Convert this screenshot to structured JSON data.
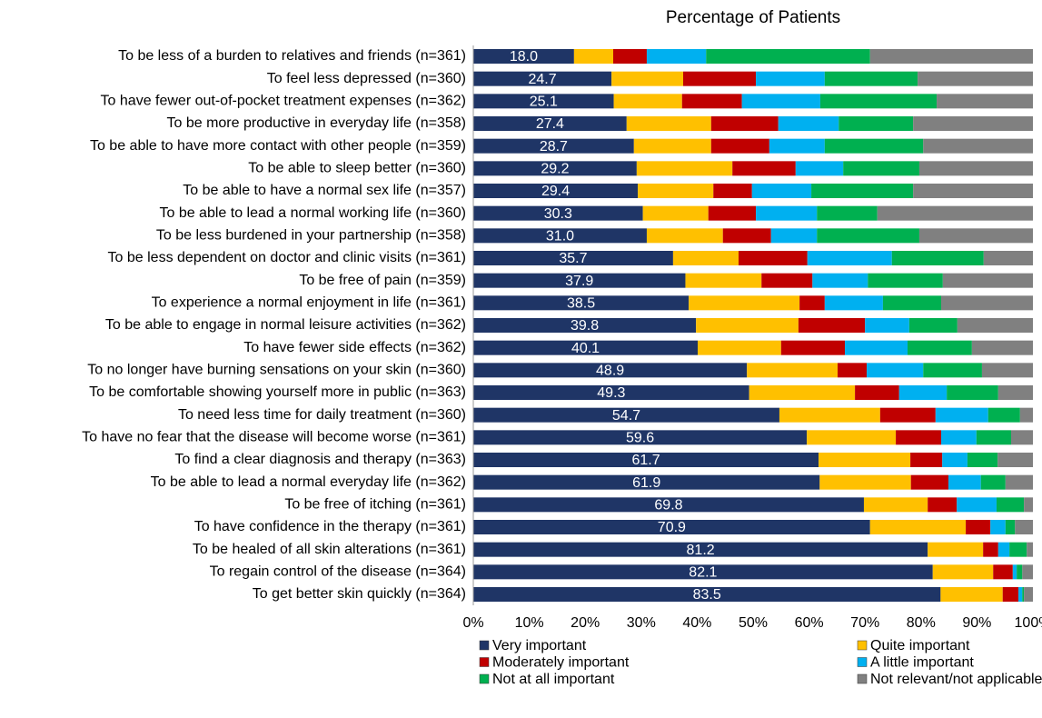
{
  "chart_data": {
    "type": "stacked-barh",
    "title": "Percentage of Patients",
    "categories": [
      "To be less of a burden to relatives and friends (n=361)",
      "To feel less depressed (n=360)",
      "To have fewer out-of-pocket treatment expenses (n=362)",
      "To be more productive in everyday life (n=358)",
      "To be able to have more contact with other people (n=359)",
      "To be able to sleep better (n=360)",
      "To be able to have a normal sex life (n=357)",
      "To be able to lead a normal working life (n=360)",
      "To be less burdened in your partnership (n=358)",
      "To be less dependent on doctor and clinic visits (n=361)",
      "To be free of pain (n=359)",
      "To experience a normal enjoyment in life (n=361)",
      "To be able to engage in normal leisure activities (n=362)",
      "To have fewer side effects (n=362)",
      "To no longer have burning sensations on your skin (n=360)",
      "To be comfortable showing yourself more in public (n=363)",
      "To need less time for daily treatment (n=360)",
      "To have no fear that the disease will become worse (n=361)",
      "To find a clear diagnosis and therapy (n=363)",
      "To be able to lead a normal everyday life (n=362)",
      "To be free of itching (n=361)",
      "To have confidence in the therapy (n=361)",
      "To be healed of all skin alterations (n=361)",
      "To regain control of the disease (n=364)",
      "To get better skin quickly (n=364)"
    ],
    "series": [
      {
        "name": "Very important",
        "color": "#1f3566",
        "values": [
          18.0,
          24.7,
          25.1,
          27.4,
          28.7,
          29.2,
          29.4,
          30.3,
          31.0,
          35.7,
          37.9,
          38.5,
          39.8,
          40.1,
          48.9,
          49.3,
          54.7,
          59.6,
          61.7,
          61.9,
          69.8,
          70.9,
          81.2,
          82.1,
          83.5
        ],
        "value_labels": [
          "18.0",
          "24.7",
          "25.1",
          "27.4",
          "28.7",
          "29.2",
          "29.4",
          "30.3",
          "31.0",
          "35.7",
          "37.9",
          "38.5",
          "39.8",
          "40.1",
          "48.9",
          "49.3",
          "54.7",
          "59.6",
          "61.7",
          "61.9",
          "69.8",
          "70.9",
          "81.2",
          "82.1",
          "83.5"
        ]
      },
      {
        "name": "Quite important",
        "color": "#ffc000",
        "values": [
          7.0,
          12.8,
          12.2,
          15.1,
          13.8,
          17.1,
          13.5,
          11.7,
          13.6,
          11.7,
          13.6,
          19.8,
          18.3,
          14.9,
          16.2,
          18.9,
          18.0,
          15.9,
          16.4,
          16.3,
          11.4,
          17.1,
          9.9,
          10.8,
          11.1
        ]
      },
      {
        "name": "Moderately important",
        "color": "#c00000",
        "values": [
          6.0,
          13.0,
          10.7,
          12.0,
          10.4,
          11.3,
          6.9,
          8.5,
          8.6,
          12.3,
          9.1,
          4.5,
          11.9,
          11.4,
          5.2,
          7.9,
          9.9,
          8.1,
          5.7,
          6.7,
          5.2,
          4.4,
          2.7,
          3.5,
          2.8
        ]
      },
      {
        "name": "A little important",
        "color": "#00b0f0",
        "values": [
          10.6,
          12.3,
          14.0,
          10.8,
          9.9,
          8.5,
          10.6,
          10.9,
          8.2,
          15.1,
          9.9,
          10.4,
          7.9,
          11.2,
          10.1,
          8.5,
          9.4,
          6.3,
          4.5,
          5.8,
          7.1,
          2.7,
          2.0,
          0.7,
          0.7
        ]
      },
      {
        "name": "Not at all important",
        "color": "#00b050",
        "values": [
          29.3,
          16.6,
          20.8,
          13.3,
          17.6,
          13.6,
          18.2,
          10.8,
          18.3,
          16.4,
          13.4,
          10.4,
          8.6,
          11.5,
          10.5,
          9.2,
          5.7,
          6.2,
          5.4,
          4.4,
          4.9,
          1.7,
          3.1,
          1.0,
          0.3
        ]
      },
      {
        "name": "Not relevant/not applicable",
        "color": "#808080",
        "values": [
          29.1,
          20.6,
          17.2,
          21.4,
          19.6,
          20.3,
          21.4,
          27.8,
          20.3,
          8.8,
          16.1,
          16.4,
          13.5,
          10.9,
          9.1,
          6.2,
          2.3,
          3.9,
          6.3,
          4.9,
          1.6,
          3.2,
          1.1,
          1.9,
          1.6
        ]
      }
    ],
    "xlim": [
      0,
      100
    ],
    "xticks": [
      {
        "value": 0,
        "label": "0%"
      },
      {
        "value": 10,
        "label": "10%"
      },
      {
        "value": 20,
        "label": "20%"
      },
      {
        "value": 30,
        "label": "30%"
      },
      {
        "value": 40,
        "label": "40%"
      },
      {
        "value": 50,
        "label": "50%"
      },
      {
        "value": 60,
        "label": "60%"
      },
      {
        "value": 70,
        "label": "70%"
      },
      {
        "value": 80,
        "label": "80%"
      },
      {
        "value": 90,
        "label": "90%"
      },
      {
        "value": 100,
        "label": "100%"
      }
    ],
    "legend": "bottom"
  }
}
